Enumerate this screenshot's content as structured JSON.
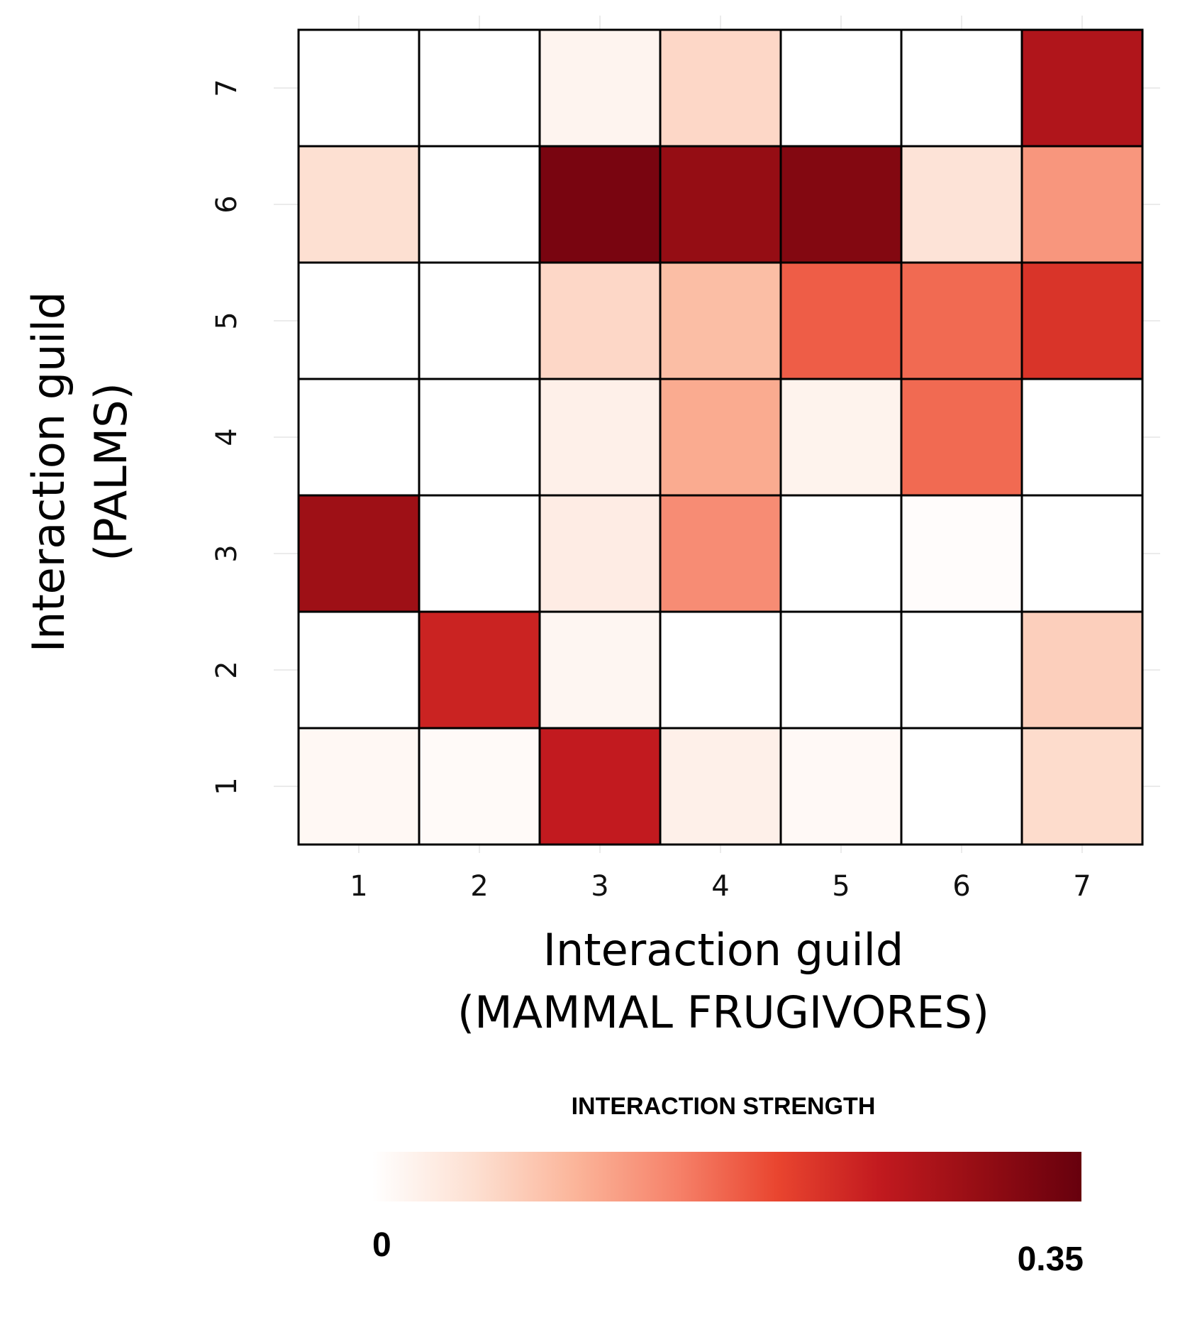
{
  "chart_data": {
    "type": "heatmap",
    "x_categories": [
      "1",
      "2",
      "3",
      "4",
      "5",
      "6",
      "7"
    ],
    "y_categories": [
      "1",
      "2",
      "3",
      "4",
      "5",
      "6",
      "7"
    ],
    "xlabel_line1": "Interaction guild",
    "xlabel_line2": "(MAMMAL FRUGIVORES)",
    "ylabel_line1": "Interaction guild",
    "ylabel_line2": "(PALMS)",
    "values_by_row_from_y1": [
      [
        0.012,
        0.008,
        0.25,
        0.025,
        0.01,
        0.0,
        0.055
      ],
      [
        0.0,
        0.24,
        0.015,
        0.0,
        0.0,
        0.0,
        0.07
      ],
      [
        0.29,
        0.0,
        0.03,
        0.14,
        0.0,
        0.005,
        0.0
      ],
      [
        0.0,
        0.0,
        0.025,
        0.11,
        0.02,
        0.17,
        0.0
      ],
      [
        0.0,
        0.0,
        0.06,
        0.09,
        0.18,
        0.17,
        0.22
      ],
      [
        0.05,
        0.0,
        0.33,
        0.3,
        0.32,
        0.045,
        0.13
      ],
      [
        0.0,
        0.0,
        0.018,
        0.06,
        0.0,
        0.0,
        0.27
      ]
    ],
    "legend": {
      "title": "INTERACTION STRENGTH",
      "min": 0,
      "max": 0.35,
      "min_label": "0",
      "max_label": "0.35",
      "colors": [
        "#ffffff",
        "#fde0d2",
        "#fbb59a",
        "#f6826a",
        "#e9452f",
        "#c21a1f",
        "#950d14",
        "#67000d"
      ],
      "placement": "bottom"
    },
    "grid": true
  }
}
